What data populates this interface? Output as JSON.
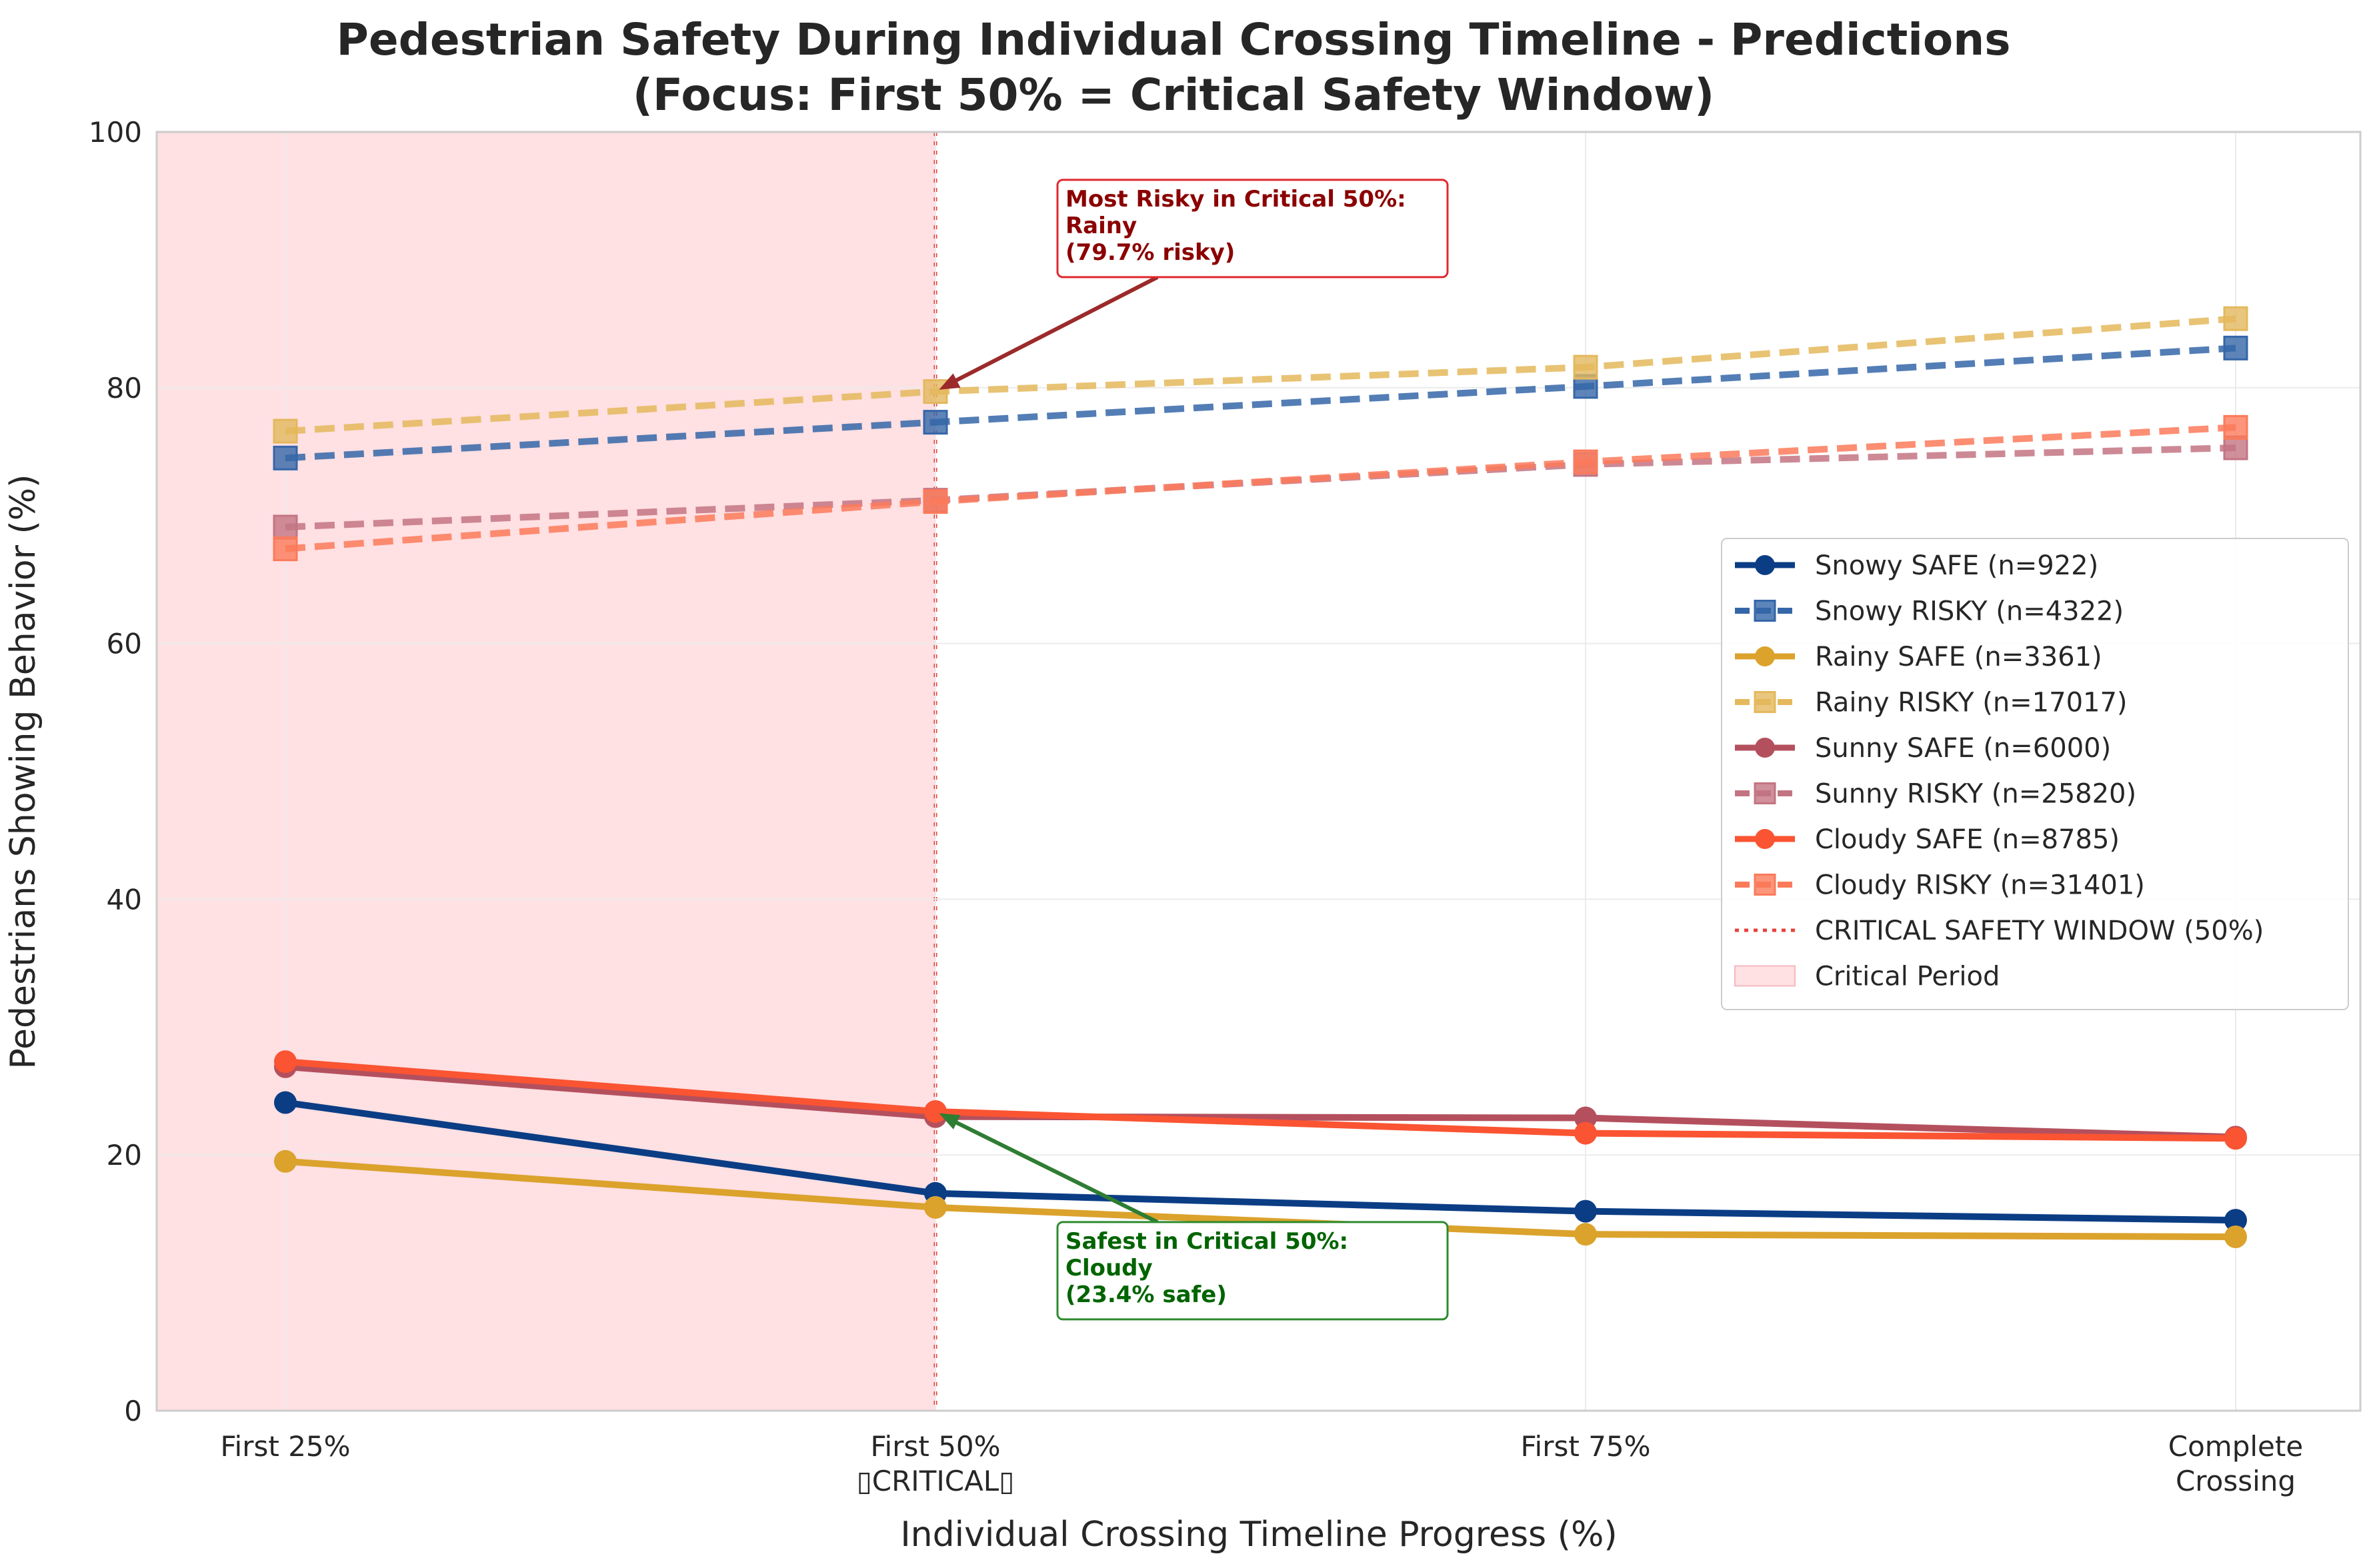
{
  "chart_data": {
    "type": "line",
    "title_line1": "Pedestrian Safety During Individual Crossing Timeline - Predictions",
    "title_line2": "(Focus: First 50% = Critical Safety Window)",
    "xlabel": "Individual Crossing Timeline Progress (%)",
    "ylabel": "Pedestrians Showing Behavior (%)",
    "categories": [
      [
        "First 25%"
      ],
      [
        "First 50%",
        "▯CRITICAL▯"
      ],
      [
        "First 75%"
      ],
      [
        "Complete",
        "Crossing"
      ]
    ],
    "ylim": [
      0,
      100
    ],
    "yticks": [
      0,
      20,
      40,
      60,
      80,
      100
    ],
    "grid": true,
    "legend_position": "center-right",
    "critical_window": {
      "x_category_index": 1,
      "line_label": "CRITICAL SAFETY WINDOW (50%)",
      "line_color": "#e8403a",
      "period_label": "Critical Period",
      "period_color": "#ffe0e3"
    },
    "series": [
      {
        "name": "Snowy SAFE (n=922)",
        "values": [
          24.1,
          17.0,
          15.6,
          14.9
        ],
        "color": "#0b3d85",
        "style": "solid",
        "marker": "circle"
      },
      {
        "name": "Snowy RISKY (n=4322)",
        "values": [
          74.5,
          77.3,
          80.1,
          83.1
        ],
        "color": "#3566a8",
        "style": "dashed",
        "marker": "square"
      },
      {
        "name": "Rainy SAFE (n=3361)",
        "values": [
          19.5,
          15.9,
          13.8,
          13.6
        ],
        "color": "#dba22c",
        "style": "solid",
        "marker": "circle"
      },
      {
        "name": "Rainy RISKY (n=17017)",
        "values": [
          76.6,
          79.7,
          81.6,
          85.4
        ],
        "color": "#e4b85c",
        "style": "dashed",
        "marker": "square"
      },
      {
        "name": "Sunny SAFE (n=6000)",
        "values": [
          26.9,
          23.0,
          22.9,
          21.4
        ],
        "color": "#b4505e",
        "style": "solid",
        "marker": "circle"
      },
      {
        "name": "Sunny RISKY (n=25820)",
        "values": [
          69.1,
          71.2,
          74.0,
          75.3
        ],
        "color": "#c37482",
        "style": "dashed",
        "marker": "square"
      },
      {
        "name": "Cloudy SAFE (n=8785)",
        "values": [
          27.3,
          23.4,
          21.7,
          21.3
        ],
        "color": "#fa5432",
        "style": "solid",
        "marker": "circle"
      },
      {
        "name": "Cloudy RISKY (n=31401)",
        "values": [
          67.4,
          71.1,
          74.2,
          76.9
        ],
        "color": "#fb7a5a",
        "style": "dashed",
        "marker": "square"
      }
    ],
    "annotations": [
      {
        "lines": [
          "Most Risky in Critical 50%:",
          "Rainy",
          "(79.7% risky)"
        ],
        "point": {
          "x_index": 1,
          "y": 79.7
        },
        "text_at": {
          "x": 1.2,
          "y": 90
        },
        "color": "#8b0000",
        "arrow_color": "#9c2a2a",
        "box_edge": "#e0282e"
      },
      {
        "lines": [
          "Safest in Critical 50%:",
          "Cloudy",
          "(23.4% safe)"
        ],
        "point": {
          "x_index": 1,
          "y": 23.4
        },
        "text_at": {
          "x": 1.2,
          "y": 8.5
        },
        "color": "#006400",
        "arrow_color": "#2e7d32",
        "box_edge": "#2e8b2e"
      }
    ]
  }
}
